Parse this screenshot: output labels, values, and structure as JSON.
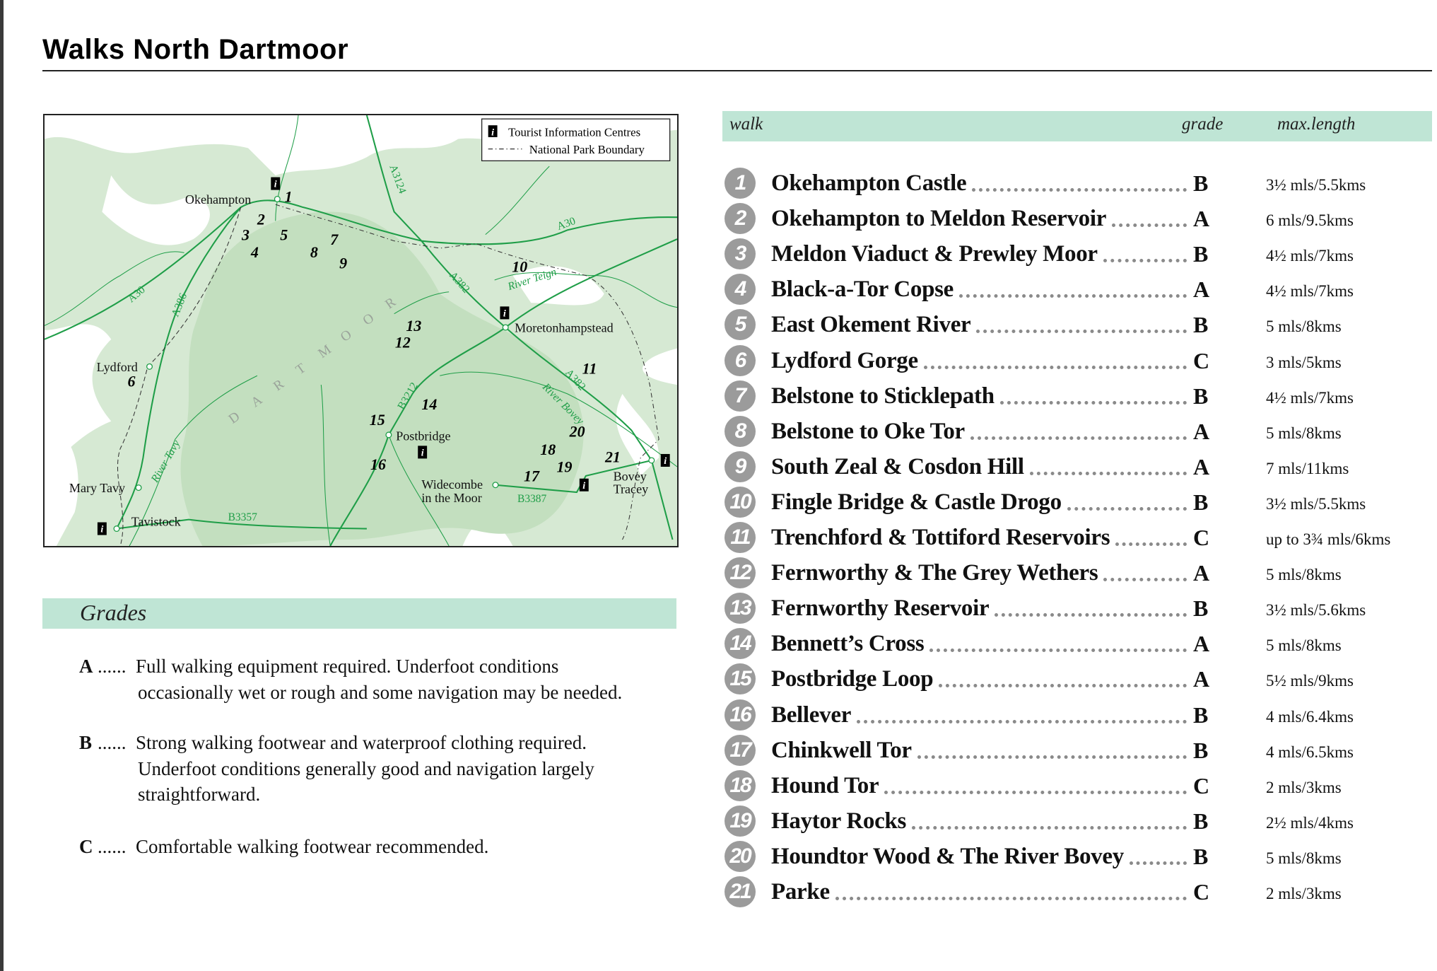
{
  "page_title": "Walks North Dartmoor",
  "map": {
    "legend": {
      "tic": "Tourist Information Centres",
      "boundary": "National Park Boundary",
      "info_icon": "i"
    },
    "region_label": "DARTMOOR",
    "towns": [
      "Okehampton",
      "Moretonhampstead",
      "Lydford",
      "Postbridge",
      "Widecombe",
      "in the Moor",
      "Bovey",
      "Tracey",
      "Mary Tavy",
      "Tavistock"
    ],
    "roads": [
      "A3124",
      "A30",
      "A30",
      "A386",
      "A382",
      "River Teign",
      "A382",
      "River Bovey",
      "B3212",
      "River Tavy",
      "B3357",
      "B3387"
    ],
    "walk_numbers": [
      "1",
      "2",
      "3",
      "4",
      "5",
      "6",
      "7",
      "8",
      "9",
      "10",
      "11",
      "12",
      "13",
      "14",
      "15",
      "16",
      "17",
      "18",
      "19",
      "20",
      "21"
    ],
    "colors": {
      "moor_light": "#d6e9d3",
      "moor_dark": "#c3dfbf",
      "road": "#1f9e48"
    }
  },
  "grades": {
    "title": "Grades",
    "items": [
      {
        "letter": "A",
        "dots": "......",
        "lines": [
          "Full walking equipment required.  Underfoot conditions",
          "occasionally wet or rough and some navigation may be needed."
        ]
      },
      {
        "letter": "B",
        "dots": "......",
        "lines": [
          "Strong walking footwear and waterproof clothing required.",
          "Underfoot conditions generally good and navigation largely",
          "straightforward."
        ]
      },
      {
        "letter": "C",
        "dots": "......",
        "lines": [
          "Comfortable walking footwear recommended."
        ]
      }
    ]
  },
  "table": {
    "headers": {
      "walk": "walk",
      "grade": "grade",
      "length": "max.length"
    },
    "rows": [
      {
        "n": "1",
        "name": "Okehampton Castle",
        "grade": "B",
        "length": "3½ mls/5.5kms"
      },
      {
        "n": "2",
        "name": "Okehampton to Meldon Reservoir",
        "grade": "A",
        "length": "6 mls/9.5kms"
      },
      {
        "n": "3",
        "name": "Meldon Viaduct & Prewley Moor",
        "grade": "B",
        "length": "4½ mls/7kms"
      },
      {
        "n": "4",
        "name": "Black-a-Tor Copse",
        "grade": "A",
        "length": "4½ mls/7kms"
      },
      {
        "n": "5",
        "name": "East Okement River",
        "grade": "B",
        "length": "5 mls/8kms"
      },
      {
        "n": "6",
        "name": "Lydford Gorge",
        "grade": "C",
        "length": "3 mls/5kms"
      },
      {
        "n": "7",
        "name": "Belstone to Sticklepath",
        "grade": "B",
        "length": "4½ mls/7kms"
      },
      {
        "n": "8",
        "name": "Belstone to Oke Tor",
        "grade": "A",
        "length": "5 mls/8kms"
      },
      {
        "n": "9",
        "name": "South Zeal & Cosdon Hill",
        "grade": "A",
        "length": "7 mls/11kms"
      },
      {
        "n": "10",
        "name": "Fingle Bridge & Castle Drogo",
        "grade": "B",
        "length": "3½ mls/5.5kms"
      },
      {
        "n": "11",
        "name": "Trenchford & Tottiford Reservoirs",
        "grade": "C",
        "length": "up to 3¾ mls/6kms"
      },
      {
        "n": "12",
        "name": "Fernworthy & The Grey Wethers",
        "grade": "A",
        "length": "5 mls/8kms"
      },
      {
        "n": "13",
        "name": "Fernworthy Reservoir",
        "grade": "B",
        "length": "3½ mls/5.6kms"
      },
      {
        "n": "14",
        "name": "Bennett’s Cross",
        "grade": "A",
        "length": "5 mls/8kms"
      },
      {
        "n": "15",
        "name": "Postbridge Loop",
        "grade": "A",
        "length": "5½ mls/9kms"
      },
      {
        "n": "16",
        "name": "Bellever",
        "grade": "B",
        "length": "4 mls/6.4kms"
      },
      {
        "n": "17",
        "name": "Chinkwell Tor",
        "grade": "B",
        "length": "4 mls/6.5kms"
      },
      {
        "n": "18",
        "name": "Hound Tor",
        "grade": "C",
        "length": "2 mls/3kms"
      },
      {
        "n": "19",
        "name": "Haytor Rocks",
        "grade": "B",
        "length": "2½ mls/4kms"
      },
      {
        "n": "20",
        "name": "Houndtor Wood & The River Bovey",
        "grade": "B",
        "length": "5 mls/8kms"
      },
      {
        "n": "21",
        "name": "Parke",
        "grade": "C",
        "length": "2 mls/3kms"
      }
    ]
  }
}
